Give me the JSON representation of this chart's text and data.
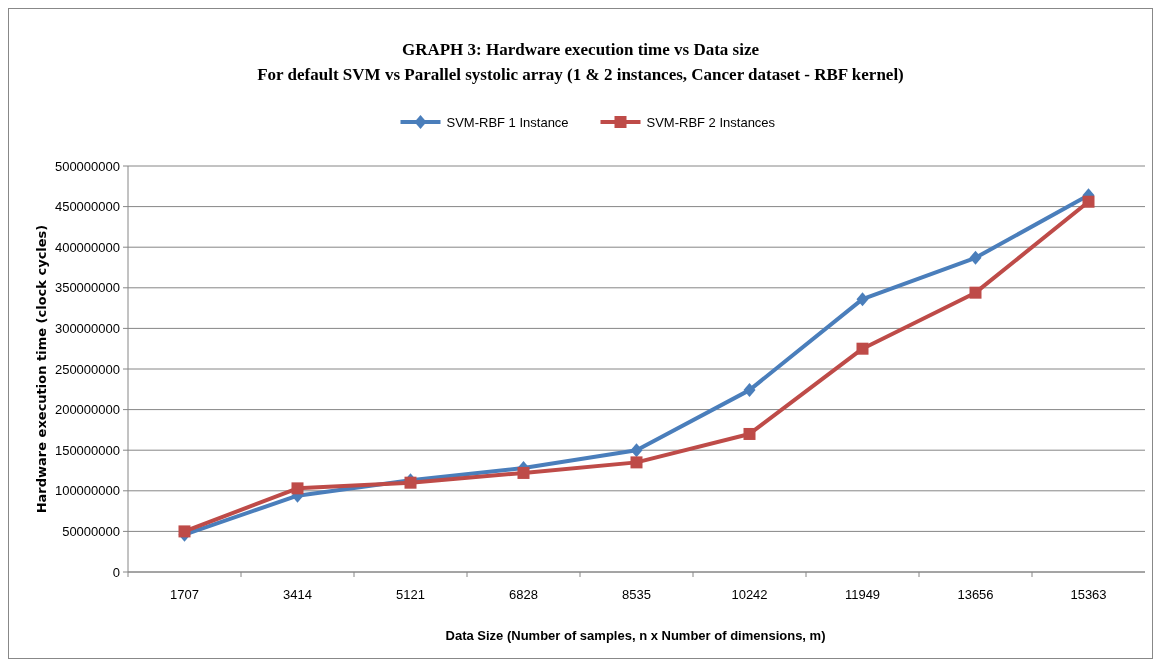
{
  "chart_data": {
    "type": "line",
    "title": "GRAPH 3: Hardware execution time vs Data size",
    "subtitle": "For default SVM vs Parallel systolic array (1 & 2 instances, Cancer dataset - RBF kernel)",
    "xlabel": "Data Size (Number of samples, n x Number of dimensions, m)",
    "ylabel": "Hardware execution time (clock cycles)",
    "categories": [
      "1707",
      "3414",
      "5121",
      "6828",
      "8535",
      "10242",
      "11949",
      "13656",
      "15363"
    ],
    "series": [
      {
        "name": "SVM-RBF 1 Instance",
        "color": "#4a7ebb",
        "marker": "diamond",
        "values": [
          46000000,
          94000000,
          113000000,
          128000000,
          150000000,
          224000000,
          336000000,
          387000000,
          464000000
        ]
      },
      {
        "name": "SVM-RBF 2 Instances",
        "color": "#be4b48",
        "marker": "square",
        "values": [
          50000000,
          103000000,
          110000000,
          122000000,
          135000000,
          170000000,
          275000000,
          344000000,
          456000000
        ]
      }
    ],
    "ylim": [
      0,
      500000000
    ],
    "yticks": [
      0,
      50000000,
      100000000,
      150000000,
      200000000,
      250000000,
      300000000,
      350000000,
      400000000,
      450000000,
      500000000
    ],
    "grid": "y",
    "legend": "top"
  }
}
